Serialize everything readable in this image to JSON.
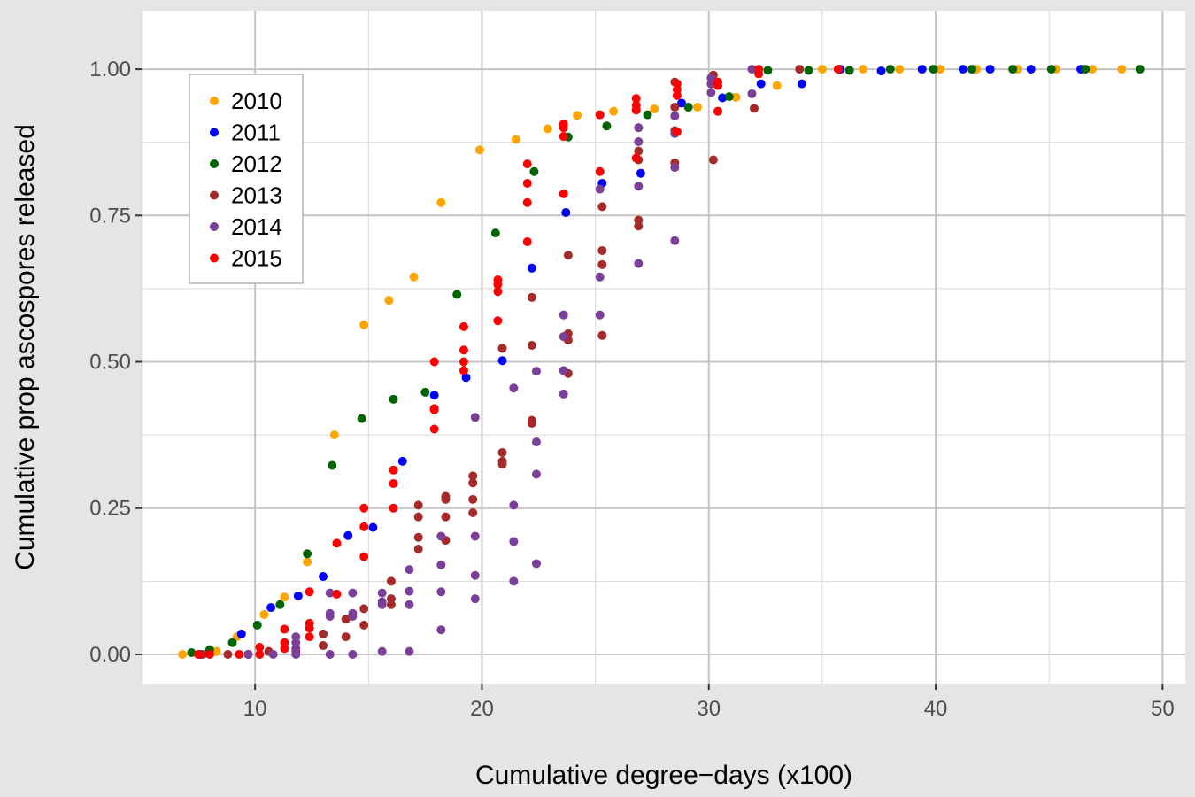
{
  "chart_data": {
    "type": "scatter",
    "xlabel": "Cumulative degree−days (x100)",
    "ylabel": "Cumulative prop ascospores released",
    "xlim": [
      5,
      51
    ],
    "ylim": [
      -0.05,
      1.1
    ],
    "x_ticks": [
      10,
      20,
      30,
      40,
      50
    ],
    "x_tick_labels": [
      "10",
      "20",
      "30",
      "40",
      "50"
    ],
    "y_ticks": [
      0,
      0.25,
      0.5,
      0.75,
      1
    ],
    "y_tick_labels": [
      "0.00",
      "0.25",
      "0.50",
      "0.75",
      "1.00"
    ],
    "grid": true,
    "legend_position": "top-left",
    "series": [
      {
        "name": "2010",
        "color": "#FFA500",
        "points": [
          [
            6.8,
            0.0
          ],
          [
            8.3,
            0.005
          ],
          [
            9.2,
            0.03
          ],
          [
            10.4,
            0.068
          ],
          [
            11.3,
            0.098
          ],
          [
            12.3,
            0.158
          ],
          [
            13.5,
            0.375
          ],
          [
            14.8,
            0.563
          ],
          [
            15.9,
            0.605
          ],
          [
            17.0,
            0.645
          ],
          [
            18.2,
            0.772
          ],
          [
            19.9,
            0.862
          ],
          [
            21.5,
            0.88
          ],
          [
            22.9,
            0.898
          ],
          [
            24.2,
            0.921
          ],
          [
            25.8,
            0.928
          ],
          [
            27.6,
            0.932
          ],
          [
            29.5,
            0.935
          ],
          [
            31.2,
            0.952
          ],
          [
            33.0,
            0.972
          ],
          [
            35.0,
            1.0
          ],
          [
            36.8,
            1.0
          ],
          [
            38.4,
            1.0
          ],
          [
            40.2,
            1.0
          ],
          [
            41.8,
            1.0
          ],
          [
            43.6,
            1.0
          ],
          [
            45.3,
            1.0
          ],
          [
            46.9,
            1.0
          ],
          [
            48.2,
            1.0
          ]
        ]
      },
      {
        "name": "2011",
        "color": "#0000FF",
        "points": [
          [
            7.6,
            0.0
          ],
          [
            9.4,
            0.035
          ],
          [
            10.7,
            0.08
          ],
          [
            11.9,
            0.1
          ],
          [
            13.0,
            0.133
          ],
          [
            14.1,
            0.203
          ],
          [
            15.2,
            0.217
          ],
          [
            16.5,
            0.33
          ],
          [
            17.9,
            0.443
          ],
          [
            19.3,
            0.473
          ],
          [
            20.9,
            0.502
          ],
          [
            22.2,
            0.66
          ],
          [
            23.7,
            0.755
          ],
          [
            25.3,
            0.805
          ],
          [
            27.0,
            0.822
          ],
          [
            28.8,
            0.942
          ],
          [
            30.6,
            0.951
          ],
          [
            32.3,
            0.975
          ],
          [
            34.1,
            0.975
          ],
          [
            35.8,
            1.0
          ],
          [
            37.6,
            0.997
          ],
          [
            39.4,
            1.0
          ],
          [
            41.2,
            1.0
          ],
          [
            42.4,
            1.0
          ],
          [
            44.2,
            1.0
          ],
          [
            46.4,
            1.0
          ]
        ]
      },
      {
        "name": "2012",
        "color": "#006400",
        "points": [
          [
            7.2,
            0.003
          ],
          [
            8.0,
            0.008
          ],
          [
            9.0,
            0.02
          ],
          [
            10.1,
            0.05
          ],
          [
            11.1,
            0.085
          ],
          [
            12.3,
            0.172
          ],
          [
            13.4,
            0.323
          ],
          [
            14.7,
            0.403
          ],
          [
            16.1,
            0.436
          ],
          [
            17.5,
            0.448
          ],
          [
            18.9,
            0.615
          ],
          [
            20.6,
            0.72
          ],
          [
            22.3,
            0.825
          ],
          [
            23.8,
            0.884
          ],
          [
            25.5,
            0.903
          ],
          [
            27.3,
            0.922
          ],
          [
            29.1,
            0.935
          ],
          [
            30.9,
            0.953
          ],
          [
            32.6,
            0.998
          ],
          [
            34.4,
            0.998
          ],
          [
            36.2,
            0.998
          ],
          [
            38.0,
            1.0
          ],
          [
            39.9,
            1.0
          ],
          [
            41.6,
            1.0
          ],
          [
            43.4,
            1.0
          ],
          [
            45.1,
            1.0
          ],
          [
            46.6,
            1.0
          ],
          [
            49.0,
            1.0
          ]
        ]
      },
      {
        "name": "2013",
        "color": "#A52A2A",
        "points": [
          [
            7.7,
            0.0
          ],
          [
            8.8,
            0.0
          ],
          [
            9.7,
            0.0
          ],
          [
            10.6,
            0.005
          ],
          [
            11.8,
            0.005
          ],
          [
            13.0,
            0.015
          ],
          [
            13.0,
            0.035
          ],
          [
            14.0,
            0.03
          ],
          [
            14.0,
            0.06
          ],
          [
            14.8,
            0.05
          ],
          [
            14.8,
            0.078
          ],
          [
            16.0,
            0.085
          ],
          [
            16.0,
            0.095
          ],
          [
            16.0,
            0.125
          ],
          [
            17.2,
            0.18
          ],
          [
            17.2,
            0.2
          ],
          [
            17.2,
            0.235
          ],
          [
            17.2,
            0.255
          ],
          [
            18.4,
            0.195
          ],
          [
            18.4,
            0.235
          ],
          [
            18.4,
            0.265
          ],
          [
            18.4,
            0.27
          ],
          [
            19.6,
            0.242
          ],
          [
            19.6,
            0.265
          ],
          [
            19.6,
            0.293
          ],
          [
            19.6,
            0.305
          ],
          [
            20.9,
            0.325
          ],
          [
            20.9,
            0.33
          ],
          [
            20.9,
            0.345
          ],
          [
            20.9,
            0.523
          ],
          [
            22.2,
            0.395
          ],
          [
            22.2,
            0.4
          ],
          [
            22.2,
            0.528
          ],
          [
            22.2,
            0.61
          ],
          [
            23.8,
            0.48
          ],
          [
            23.8,
            0.537
          ],
          [
            23.8,
            0.548
          ],
          [
            23.8,
            0.682
          ],
          [
            25.3,
            0.545
          ],
          [
            25.3,
            0.666
          ],
          [
            25.3,
            0.69
          ],
          [
            25.3,
            0.765
          ],
          [
            26.9,
            0.732
          ],
          [
            26.9,
            0.742
          ],
          [
            26.9,
            0.845
          ],
          [
            26.9,
            0.86
          ],
          [
            28.5,
            0.84
          ],
          [
            28.5,
            0.895
          ],
          [
            28.5,
            0.935
          ],
          [
            28.5,
            0.978
          ],
          [
            30.2,
            0.845
          ],
          [
            30.2,
            0.99
          ],
          [
            32.0,
            0.933
          ],
          [
            34.0,
            1.0
          ]
        ]
      },
      {
        "name": "2014",
        "color": "#7B3F98",
        "points": [
          [
            9.7,
            0.0
          ],
          [
            10.8,
            0.0
          ],
          [
            11.8,
            0.0
          ],
          [
            11.8,
            0.01
          ],
          [
            11.8,
            0.02
          ],
          [
            11.8,
            0.03
          ],
          [
            13.3,
            0.0
          ],
          [
            13.3,
            0.065
          ],
          [
            13.3,
            0.07
          ],
          [
            13.3,
            0.105
          ],
          [
            14.3,
            0.0
          ],
          [
            14.3,
            0.065
          ],
          [
            14.3,
            0.07
          ],
          [
            14.3,
            0.105
          ],
          [
            15.6,
            0.005
          ],
          [
            15.6,
            0.085
          ],
          [
            15.6,
            0.09
          ],
          [
            15.6,
            0.105
          ],
          [
            16.8,
            0.005
          ],
          [
            16.8,
            0.085
          ],
          [
            16.8,
            0.108
          ],
          [
            16.8,
            0.145
          ],
          [
            18.2,
            0.042
          ],
          [
            18.2,
            0.107
          ],
          [
            18.2,
            0.153
          ],
          [
            18.2,
            0.202
          ],
          [
            19.7,
            0.095
          ],
          [
            19.7,
            0.135
          ],
          [
            19.7,
            0.202
          ],
          [
            19.7,
            0.405
          ],
          [
            21.4,
            0.125
          ],
          [
            21.4,
            0.193
          ],
          [
            21.4,
            0.255
          ],
          [
            21.4,
            0.455
          ],
          [
            22.4,
            0.155
          ],
          [
            22.4,
            0.308
          ],
          [
            22.4,
            0.363
          ],
          [
            22.4,
            0.484
          ],
          [
            23.6,
            0.445
          ],
          [
            23.6,
            0.485
          ],
          [
            23.6,
            0.543
          ],
          [
            23.6,
            0.58
          ],
          [
            25.2,
            0.58
          ],
          [
            25.2,
            0.645
          ],
          [
            25.2,
            0.795
          ],
          [
            25.2,
            0.922
          ],
          [
            26.9,
            0.668
          ],
          [
            26.9,
            0.8
          ],
          [
            26.9,
            0.876
          ],
          [
            26.9,
            0.9
          ],
          [
            28.5,
            0.707
          ],
          [
            28.5,
            0.832
          ],
          [
            28.5,
            0.89
          ],
          [
            28.5,
            0.92
          ],
          [
            30.1,
            0.96
          ],
          [
            30.1,
            0.975
          ],
          [
            30.1,
            0.985
          ],
          [
            31.9,
            0.958
          ],
          [
            31.9,
            1.0
          ]
        ]
      },
      {
        "name": "2015",
        "color": "#FF0000",
        "points": [
          [
            7.5,
            0.0
          ],
          [
            8.0,
            0.0
          ],
          [
            9.3,
            0.0
          ],
          [
            10.2,
            0.0
          ],
          [
            10.2,
            0.012
          ],
          [
            11.3,
            0.01
          ],
          [
            11.3,
            0.02
          ],
          [
            11.3,
            0.043
          ],
          [
            12.4,
            0.03
          ],
          [
            12.4,
            0.045
          ],
          [
            12.4,
            0.053
          ],
          [
            12.4,
            0.107
          ],
          [
            13.6,
            0.103
          ],
          [
            13.6,
            0.19
          ],
          [
            14.8,
            0.167
          ],
          [
            14.8,
            0.218
          ],
          [
            14.8,
            0.25
          ],
          [
            16.1,
            0.25
          ],
          [
            16.1,
            0.292
          ],
          [
            16.1,
            0.315
          ],
          [
            17.9,
            0.385
          ],
          [
            17.9,
            0.418
          ],
          [
            17.9,
            0.42
          ],
          [
            17.9,
            0.5
          ],
          [
            19.2,
            0.485
          ],
          [
            19.2,
            0.5
          ],
          [
            19.2,
            0.52
          ],
          [
            19.2,
            0.56
          ],
          [
            20.7,
            0.57
          ],
          [
            20.7,
            0.62
          ],
          [
            20.7,
            0.632
          ],
          [
            20.7,
            0.64
          ],
          [
            22.0,
            0.705
          ],
          [
            22.0,
            0.772
          ],
          [
            22.0,
            0.805
          ],
          [
            22.0,
            0.838
          ],
          [
            23.6,
            0.787
          ],
          [
            23.6,
            0.885
          ],
          [
            23.6,
            0.9
          ],
          [
            23.6,
            0.906
          ],
          [
            25.2,
            0.825
          ],
          [
            25.2,
            0.922
          ],
          [
            26.8,
            0.848
          ],
          [
            26.8,
            0.93
          ],
          [
            26.8,
            0.938
          ],
          [
            26.8,
            0.95
          ],
          [
            28.6,
            0.893
          ],
          [
            28.6,
            0.955
          ],
          [
            28.6,
            0.965
          ],
          [
            28.6,
            0.975
          ],
          [
            30.4,
            0.928
          ],
          [
            30.4,
            0.972
          ],
          [
            30.4,
            0.978
          ],
          [
            32.2,
            0.992
          ],
          [
            32.2,
            1.0
          ],
          [
            35.7,
            1.0
          ]
        ]
      }
    ]
  }
}
